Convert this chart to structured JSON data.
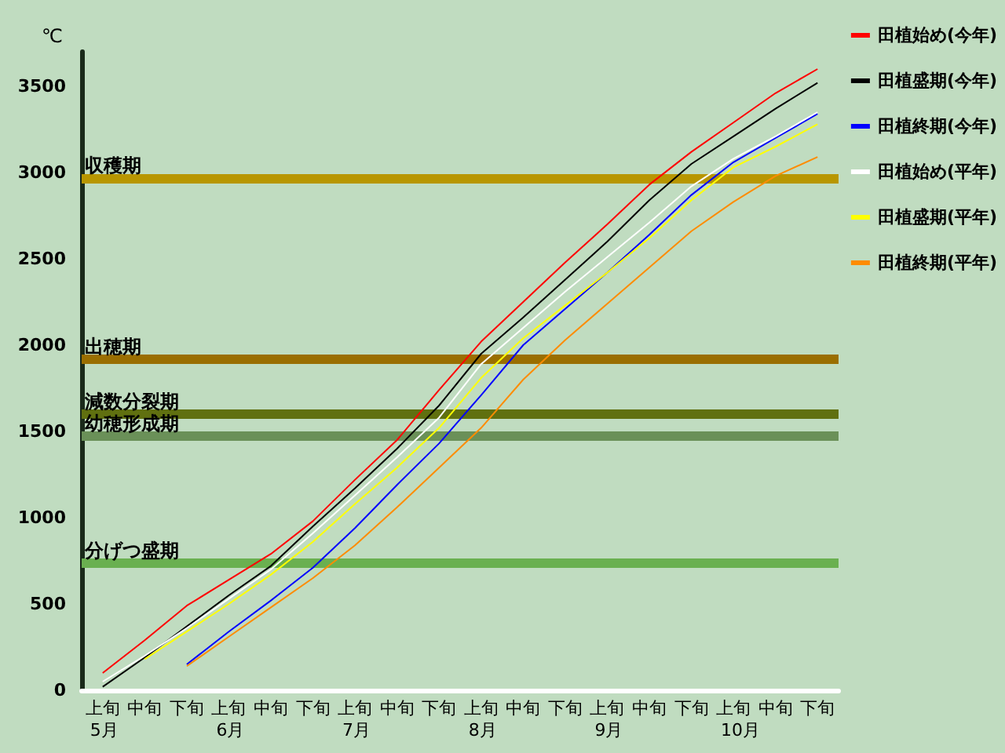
{
  "chart_data": {
    "type": "line",
    "ylabel": "℃",
    "ylim": [
      0,
      3700
    ],
    "categories": [
      "上旬",
      "中旬",
      "下旬",
      "上旬",
      "中旬",
      "下旬",
      "上旬",
      "中旬",
      "下旬",
      "上旬",
      "中旬",
      "下旬",
      "上旬",
      "中旬",
      "下旬",
      "上旬",
      "中旬",
      "下旬"
    ],
    "yticks": [
      0,
      500,
      1000,
      1500,
      2000,
      2500,
      3000,
      3500
    ],
    "annotations": [
      "5月",
      "6月",
      "7月",
      "8月",
      "9月",
      "10月"
    ],
    "grid": false,
    "legend": "right",
    "marker": "none",
    "line_style": "solid",
    "series": [
      {
        "name": "田植始め(今年)",
        "color": "#ff0000",
        "values": [
          100,
          290,
          490,
          640,
          790,
          980,
          1220,
          1450,
          1740,
          2020,
          2250,
          2480,
          2700,
          2930,
          3120,
          3290,
          3460,
          3600
        ]
      },
      {
        "name": "田植盛期(今年)",
        "color": "#000000",
        "values": [
          20,
          190,
          370,
          550,
          720,
          950,
          1170,
          1400,
          1650,
          1950,
          2160,
          2380,
          2600,
          2840,
          3050,
          3210,
          3370,
          3520
        ]
      },
      {
        "name": "田植終期(今年)",
        "color": "#0000ff",
        "values": [
          null,
          null,
          150,
          340,
          520,
          710,
          940,
          1190,
          1430,
          1710,
          2000,
          2210,
          2420,
          2640,
          2870,
          3060,
          3200,
          3340
        ]
      },
      {
        "name": "田植始め(平年)",
        "color": "#ffffff",
        "values": [
          50,
          200,
          360,
          530,
          700,
          910,
          1130,
          1350,
          1580,
          1890,
          2100,
          2310,
          2510,
          2710,
          2920,
          3080,
          3210,
          3350
        ]
      },
      {
        "name": "田植盛期(平年)",
        "color": "#ffff00",
        "values": [
          null,
          180,
          340,
          500,
          670,
          860,
          1080,
          1290,
          1520,
          1810,
          2040,
          2230,
          2420,
          2620,
          2840,
          3030,
          3150,
          3280
        ]
      },
      {
        "name": "田植終期(平年)",
        "color": "#ff8c00",
        "values": [
          null,
          null,
          140,
          310,
          480,
          650,
          840,
          1060,
          1290,
          1520,
          1800,
          2030,
          2240,
          2450,
          2660,
          2830,
          2980,
          3090
        ]
      }
    ],
    "ref_lines": [
      {
        "axis": "y",
        "value": 2970,
        "label": "収穫期",
        "color": "#b89600"
      },
      {
        "axis": "y",
        "value": 1920,
        "label": "出穂期",
        "color": "#9a6e00"
      },
      {
        "axis": "y",
        "value": 1600,
        "label": "減数分裂期",
        "color": "#607010"
      },
      {
        "axis": "y",
        "value": 1475,
        "label": "幼穂形成期",
        "color": "#6a9058"
      },
      {
        "axis": "y",
        "value": 735,
        "label": "分げつ盛期",
        "color": "#6ab050"
      }
    ]
  }
}
